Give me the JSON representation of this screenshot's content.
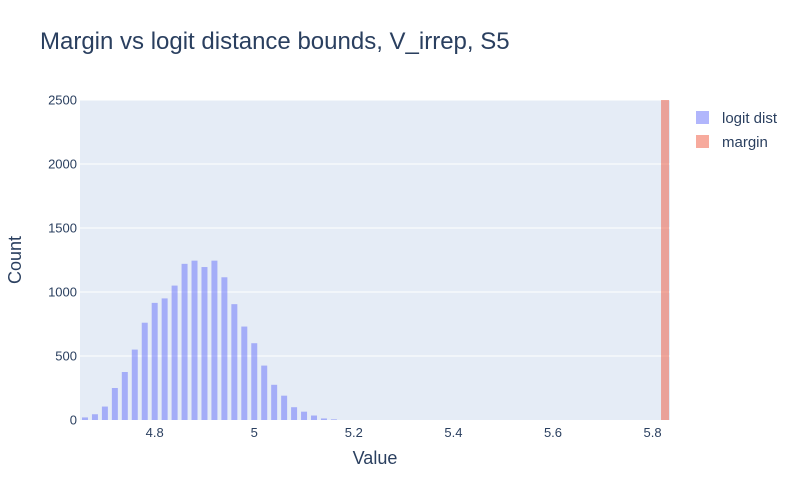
{
  "chart_data": {
    "type": "bar",
    "title": "Margin vs logit distance bounds, V_irrep, S5",
    "xlabel": "Value",
    "ylabel": "Count",
    "xlim": [
      4.65,
      5.835
    ],
    "ylim": [
      0,
      2500
    ],
    "x_ticks": [
      "4.8",
      "5",
      "5.2",
      "5.4",
      "5.6",
      "5.8"
    ],
    "x_tick_values": [
      4.8,
      5.0,
      5.2,
      5.4,
      5.6,
      5.8
    ],
    "y_ticks": [
      "0",
      "500",
      "1000",
      "1500",
      "2000",
      "2500"
    ],
    "y_tick_values": [
      0,
      500,
      1000,
      1500,
      2000,
      2500
    ],
    "legend_position": "top-right",
    "background_color": "#e5ecf6",
    "series": [
      {
        "name": "logit dist",
        "color": "#636efa",
        "opacity": 0.5,
        "bin_width": 0.02,
        "bins": [
          {
            "x": 4.66,
            "y": 20
          },
          {
            "x": 4.68,
            "y": 45
          },
          {
            "x": 4.7,
            "y": 105
          },
          {
            "x": 4.72,
            "y": 250
          },
          {
            "x": 4.74,
            "y": 375
          },
          {
            "x": 4.76,
            "y": 550
          },
          {
            "x": 4.78,
            "y": 760
          },
          {
            "x": 4.8,
            "y": 915
          },
          {
            "x": 4.82,
            "y": 950
          },
          {
            "x": 4.84,
            "y": 1050
          },
          {
            "x": 4.86,
            "y": 1220
          },
          {
            "x": 4.88,
            "y": 1245
          },
          {
            "x": 4.9,
            "y": 1195
          },
          {
            "x": 4.92,
            "y": 1245
          },
          {
            "x": 4.94,
            "y": 1115
          },
          {
            "x": 4.96,
            "y": 905
          },
          {
            "x": 4.98,
            "y": 730
          },
          {
            "x": 5.0,
            "y": 600
          },
          {
            "x": 5.02,
            "y": 425
          },
          {
            "x": 5.04,
            "y": 275
          },
          {
            "x": 5.06,
            "y": 190
          },
          {
            "x": 5.08,
            "y": 100
          },
          {
            "x": 5.1,
            "y": 65
          },
          {
            "x": 5.12,
            "y": 35
          },
          {
            "x": 5.14,
            "y": 12
          },
          {
            "x": 5.16,
            "y": 5
          }
        ]
      },
      {
        "name": "margin",
        "color": "#ef553b",
        "opacity": 0.5,
        "bin_width": 0.018,
        "bins": [
          {
            "x": 5.825,
            "y": 2500
          }
        ]
      }
    ]
  }
}
